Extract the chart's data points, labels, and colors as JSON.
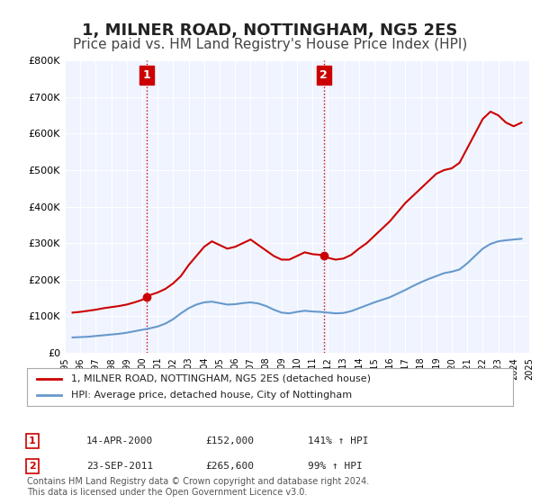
{
  "title": "1, MILNER ROAD, NOTTINGHAM, NG5 2ES",
  "subtitle": "Price paid vs. HM Land Registry's House Price Index (HPI)",
  "title_fontsize": 13,
  "subtitle_fontsize": 11,
  "background_color": "#ffffff",
  "plot_bg_color": "#f0f4ff",
  "grid_color": "#ffffff",
  "ylim": [
    0,
    800000
  ],
  "yticks": [
    0,
    100000,
    200000,
    300000,
    400000,
    500000,
    600000,
    700000,
    800000
  ],
  "ytick_labels": [
    "£0",
    "£100K",
    "£200K",
    "£300K",
    "£400K",
    "£500K",
    "£600K",
    "£700K",
    "£800K"
  ],
  "red_line_color": "#cc0000",
  "blue_line_color": "#6699cc",
  "sale1_date": 2000.29,
  "sale1_price": 152000,
  "sale1_label": "1",
  "sale2_date": 2011.73,
  "sale2_price": 265600,
  "sale2_label": "2",
  "vline_color": "#cc0000",
  "vline_style": ":",
  "annotation_box_color": "#cc0000",
  "footer_text": "Contains HM Land Registry data © Crown copyright and database right 2024.\nThis data is licensed under the Open Government Licence v3.0.",
  "legend_label_red": "1, MILNER ROAD, NOTTINGHAM, NG5 2ES (detached house)",
  "legend_label_blue": "HPI: Average price, detached house, City of Nottingham",
  "table_row1": [
    "1",
    "14-APR-2000",
    "£152,000",
    "141% ↑ HPI"
  ],
  "table_row2": [
    "2",
    "23-SEP-2011",
    "£265,600",
    "99% ↑ HPI"
  ],
  "red_hpi_data": {
    "years": [
      1995.5,
      1996.0,
      1996.5,
      1997.0,
      1997.5,
      1998.0,
      1998.5,
      1999.0,
      1999.5,
      2000.0,
      2000.29,
      2000.5,
      2001.0,
      2001.5,
      2002.0,
      2002.5,
      2003.0,
      2003.5,
      2004.0,
      2004.5,
      2005.0,
      2005.5,
      2006.0,
      2006.5,
      2007.0,
      2007.5,
      2008.0,
      2008.5,
      2009.0,
      2009.5,
      2010.0,
      2010.5,
      2011.0,
      2011.5,
      2011.73,
      2012.0,
      2012.5,
      2013.0,
      2013.5,
      2014.0,
      2014.5,
      2015.0,
      2015.5,
      2016.0,
      2016.5,
      2017.0,
      2017.5,
      2018.0,
      2018.5,
      2019.0,
      2019.5,
      2020.0,
      2020.5,
      2021.0,
      2021.5,
      2022.0,
      2022.5,
      2023.0,
      2023.5,
      2024.0,
      2024.5
    ],
    "values": [
      110000,
      112000,
      115000,
      118000,
      122000,
      125000,
      128000,
      132000,
      138000,
      145000,
      152000,
      158000,
      165000,
      175000,
      190000,
      210000,
      240000,
      265000,
      290000,
      305000,
      295000,
      285000,
      290000,
      300000,
      310000,
      295000,
      280000,
      265000,
      255000,
      255000,
      265000,
      275000,
      270000,
      268000,
      265600,
      260000,
      255000,
      258000,
      268000,
      285000,
      300000,
      320000,
      340000,
      360000,
      385000,
      410000,
      430000,
      450000,
      470000,
      490000,
      500000,
      505000,
      520000,
      560000,
      600000,
      640000,
      660000,
      650000,
      630000,
      620000,
      630000
    ]
  },
  "blue_hpi_data": {
    "years": [
      1995.5,
      1996.0,
      1996.5,
      1997.0,
      1997.5,
      1998.0,
      1998.5,
      1999.0,
      1999.5,
      2000.0,
      2000.5,
      2001.0,
      2001.5,
      2002.0,
      2002.5,
      2003.0,
      2003.5,
      2004.0,
      2004.5,
      2005.0,
      2005.5,
      2006.0,
      2006.5,
      2007.0,
      2007.5,
      2008.0,
      2008.5,
      2009.0,
      2009.5,
      2010.0,
      2010.5,
      2011.0,
      2011.5,
      2012.0,
      2012.5,
      2013.0,
      2013.5,
      2014.0,
      2014.5,
      2015.0,
      2015.5,
      2016.0,
      2016.5,
      2017.0,
      2017.5,
      2018.0,
      2018.5,
      2019.0,
      2019.5,
      2020.0,
      2020.5,
      2021.0,
      2021.5,
      2022.0,
      2022.5,
      2023.0,
      2023.5,
      2024.0,
      2024.5
    ],
    "values": [
      42000,
      43000,
      44000,
      46000,
      48000,
      50000,
      52000,
      55000,
      59000,
      63000,
      67000,
      72000,
      80000,
      92000,
      108000,
      122000,
      132000,
      138000,
      140000,
      136000,
      132000,
      133000,
      136000,
      138000,
      135000,
      128000,
      118000,
      110000,
      108000,
      112000,
      115000,
      113000,
      112000,
      110000,
      108000,
      109000,
      114000,
      122000,
      130000,
      138000,
      145000,
      152000,
      162000,
      172000,
      183000,
      193000,
      202000,
      210000,
      218000,
      222000,
      228000,
      245000,
      265000,
      285000,
      298000,
      305000,
      308000,
      310000,
      312000
    ]
  },
  "xtick_years": [
    1995,
    1996,
    1997,
    1998,
    1999,
    2000,
    2001,
    2002,
    2003,
    2004,
    2005,
    2006,
    2007,
    2008,
    2009,
    2010,
    2011,
    2012,
    2013,
    2014,
    2015,
    2016,
    2017,
    2018,
    2019,
    2020,
    2021,
    2022,
    2023,
    2024,
    2025
  ]
}
